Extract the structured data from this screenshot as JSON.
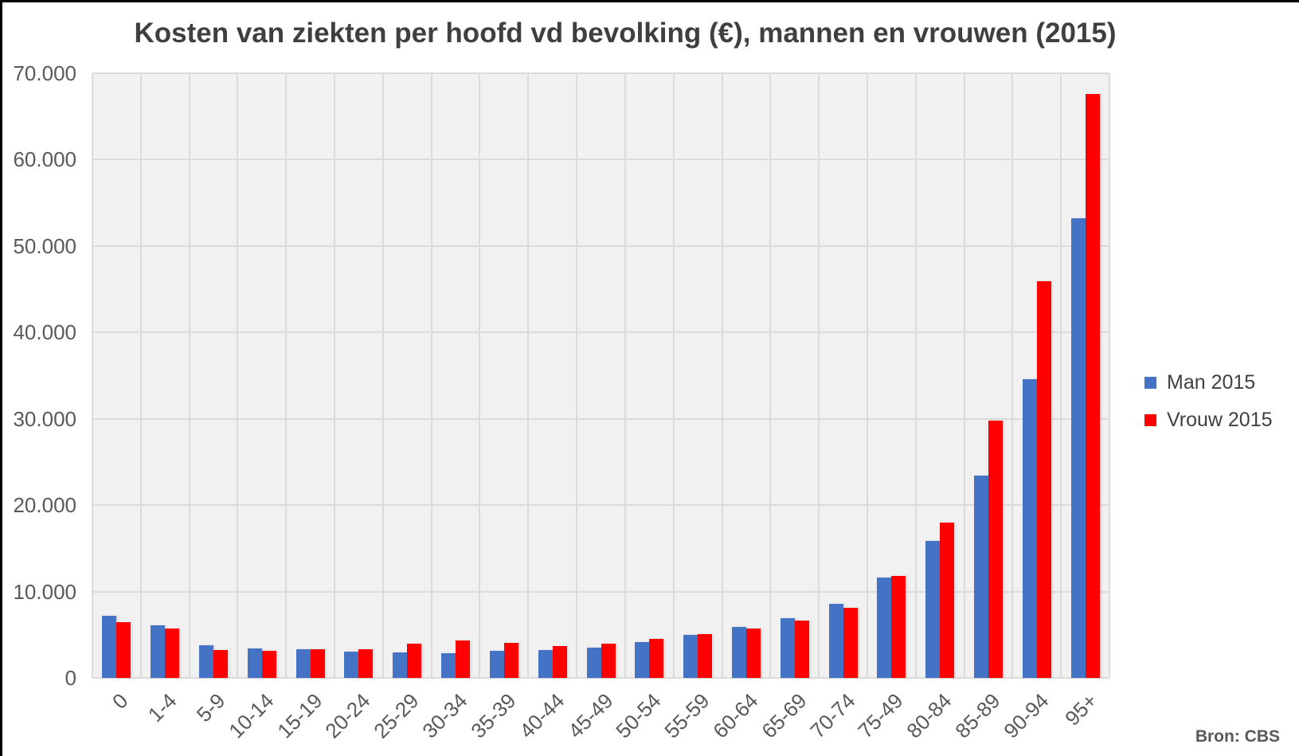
{
  "title": "Kosten van ziekten per hoofd vd bevolking (€), mannen en vrouwen (2015)",
  "source": "Bron: CBS",
  "colors": {
    "man": "#4472c4",
    "vrouw": "#ff0000",
    "plot_background": "#f1f1f1",
    "gridline": "#dbdbdb",
    "title_text": "#3f3f3f",
    "axis_text": "#595959"
  },
  "legend": {
    "items": [
      {
        "label": "Man 2015",
        "color": "#4472c4"
      },
      {
        "label": "Vrouw 2015",
        "color": "#ff0000"
      }
    ],
    "position": "right"
  },
  "chart_data": {
    "type": "bar",
    "title": "Kosten van ziekten per hoofd vd bevolking (€), mannen en vrouwen (2015)",
    "xlabel": "",
    "ylabel": "",
    "ylim": [
      0,
      70000
    ],
    "ytick_interval": 10000,
    "ytick_labels_bottom_to_top": [
      "0",
      "10.000",
      "20.000",
      "30.000",
      "40.000",
      "50.000",
      "60.000",
      "70.000"
    ],
    "grid": true,
    "legend_position": "right",
    "categories": [
      "0",
      "1-4",
      "5-9",
      "10-14",
      "15-19",
      "20-24",
      "25-29",
      "30-34",
      "35-39",
      "40-44",
      "45-49",
      "50-54",
      "55-59",
      "60-64",
      "65-69",
      "70-74",
      "75-49",
      "80-84",
      "85-89",
      "90-94",
      "95+"
    ],
    "series": [
      {
        "name": "Man 2015",
        "color": "#4472c4",
        "values": [
          7200,
          6100,
          3800,
          3400,
          3300,
          3000,
          2950,
          2900,
          3100,
          3200,
          3550,
          4150,
          5000,
          5900,
          6900,
          8600,
          11600,
          15900,
          23400,
          34600,
          53200
        ]
      },
      {
        "name": "Vrouw 2015",
        "color": "#ff0000",
        "values": [
          6500,
          5700,
          3200,
          3100,
          3300,
          3300,
          3950,
          4300,
          4050,
          3700,
          3950,
          4500,
          5100,
          5700,
          6600,
          8100,
          11800,
          18000,
          29800,
          45900,
          67600
        ]
      }
    ],
    "source": "Bron: CBS"
  }
}
